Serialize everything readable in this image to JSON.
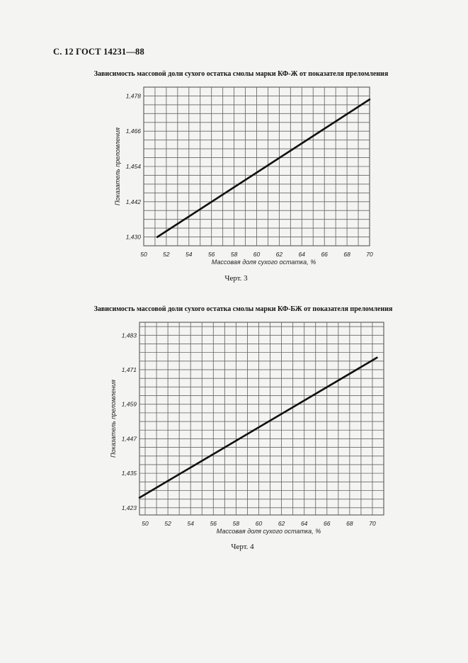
{
  "header": {
    "page_label": "С. 12 ГОСТ 14231—88"
  },
  "chart_data": [
    {
      "type": "line",
      "title": "Зависимость массовой доли сухого остатка смолы марки КФ-Ж от показателя преломления",
      "xlabel": "Массовая доля сухого остатка, %",
      "ylabel": "Показатель преломления",
      "x_ticks": [
        "50",
        "52",
        "54",
        "56",
        "58",
        "60",
        "62",
        "64",
        "66",
        "68",
        "70"
      ],
      "y_ticks": [
        "1,430",
        "1,442",
        "1,454",
        "1,466",
        "1,478"
      ],
      "xlim": [
        50,
        70
      ],
      "ylim": [
        1.427,
        1.481
      ],
      "grid": true,
      "series": [
        {
          "x": [
            51.2,
            70
          ],
          "y": [
            1.43,
            1.4768
          ]
        }
      ],
      "caption": "Черт. 3"
    },
    {
      "type": "line",
      "title": "Зависимость массовой доли сухого остатка смолы марки КФ-БЖ от показателя преломления",
      "xlabel": "Массовая доля сухого остатка, %",
      "ylabel": "Показатель преломления",
      "x_ticks": [
        "50",
        "52",
        "54",
        "56",
        "58",
        "60",
        "62",
        "64",
        "66",
        "68",
        "70"
      ],
      "y_ticks": [
        "1,423",
        "1,435",
        "1,447",
        "1,459",
        "1,471",
        "1,483"
      ],
      "xlim": [
        49.5,
        71
      ],
      "ylim": [
        1.4205,
        1.4875
      ],
      "grid": true,
      "series": [
        {
          "x": [
            49.5,
            70.4
          ],
          "y": [
            1.4265,
            1.4752
          ]
        }
      ],
      "caption": "Черт. 4"
    }
  ]
}
